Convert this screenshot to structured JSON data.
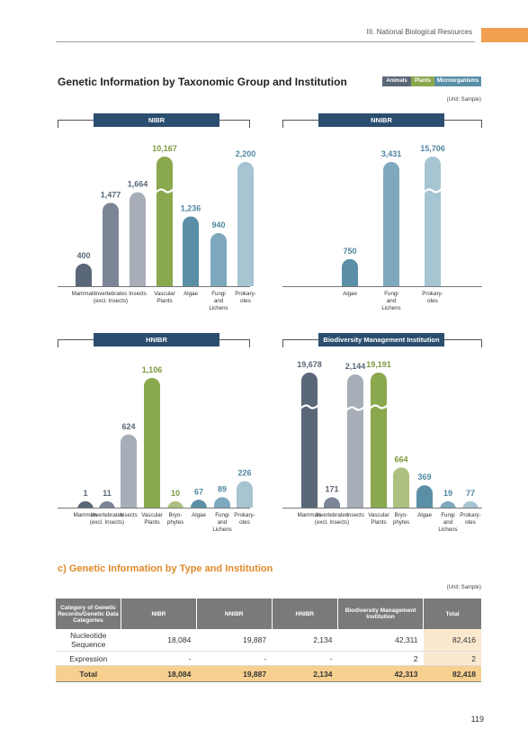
{
  "header": {
    "chapter": "III. National Biological Resources"
  },
  "title": "Genetic Information by Taxonomic Group and Institution",
  "legend": [
    {
      "label": "Animals",
      "color": "#5a6778"
    },
    {
      "label": "Plants",
      "color": "#8aa84e"
    },
    {
      "label": "Microorganisms",
      "color": "#5b8fa8"
    }
  ],
  "unit_label": "(Unit: Sample)",
  "colors": {
    "mammals": "#5a6778",
    "invertebrates": "#7b8596",
    "insects": "#a7aeb8",
    "vascular": "#8aa84e",
    "bryophytes": "#aec07f",
    "algae": "#5b8fa8",
    "fungi": "#7ea8bd",
    "prokaryotes": "#a6c4d1"
  },
  "chart_data": [
    {
      "type": "bar",
      "title": "NIBR",
      "categories": [
        "Mammals",
        "Invertebrates (excl. Insects)",
        "Insects",
        "Vascular Plants",
        "Algae",
        "Fungi and Lichens",
        "Prokaryotes"
      ],
      "values": [
        400,
        1477,
        1664,
        10167,
        1236,
        940,
        2200
      ],
      "value_labels": [
        "400",
        "1,477",
        "1,664",
        "10,167",
        "1,236",
        "940",
        "2,200"
      ],
      "axis_breaks": [
        3
      ],
      "tick_labels": [
        [
          "Mammals"
        ],
        [
          "Invertebrates",
          "(excl. Insects)"
        ],
        [
          "Insects"
        ],
        [
          "Vascular",
          "Plants"
        ],
        [
          "Algae"
        ],
        [
          "Fungi",
          "and",
          "Lichens"
        ],
        [
          "Prokary-",
          "otes"
        ]
      ]
    },
    {
      "type": "bar",
      "title": "NNIBR",
      "categories": [
        "Algae",
        "Fungi and Lichens",
        "Prokaryotes"
      ],
      "values": [
        750,
        3431,
        15706
      ],
      "value_labels": [
        "750",
        "3,431",
        "15,706"
      ],
      "axis_breaks": [
        2
      ],
      "tick_labels": [
        [
          "Algae"
        ],
        [
          "Fungi",
          "and",
          "Lichens"
        ],
        [
          "Prokary-",
          "otes"
        ]
      ]
    },
    {
      "type": "bar",
      "title": "HNIBR",
      "categories": [
        "Mammals",
        "Invertebrates (excl. Insects)",
        "Insects",
        "Vascular Plants",
        "Bryophytes",
        "Algae",
        "Fungi and Lichens",
        "Prokaryotes"
      ],
      "values": [
        1,
        11,
        624,
        1106,
        10,
        67,
        89,
        226
      ],
      "value_labels": [
        "1",
        "11",
        "624",
        "1,106",
        "10",
        "67",
        "89",
        "226"
      ],
      "axis_breaks": [],
      "tick_labels": [
        [
          "Mammals"
        ],
        [
          "Invertebrates",
          "(excl. Insects)"
        ],
        [
          "Insects"
        ],
        [
          "Vascular",
          "Plants"
        ],
        [
          "Bryo-",
          "phytes"
        ],
        [
          "Algae"
        ],
        [
          "Fungi",
          "and",
          "Lichens"
        ],
        [
          "Prokary-",
          "otes"
        ]
      ]
    },
    {
      "type": "bar",
      "title": "Biodiversity Management Institution",
      "categories": [
        "Mammals",
        "Invertebrates (excl. Insects)",
        "Insects",
        "Vascular Plants",
        "Bryophytes",
        "Algae",
        "Fungi and Lichens",
        "Prokaryotes"
      ],
      "values": [
        19678,
        171,
        2144,
        19191,
        664,
        369,
        19,
        77
      ],
      "value_labels": [
        "19,678",
        "171",
        "2,144",
        "19,191",
        "664",
        "369",
        "19",
        "77"
      ],
      "axis_breaks": [
        0,
        2,
        3
      ],
      "tick_labels": [
        [
          "Mammals"
        ],
        [
          "Invertebrates",
          "(excl. Insects)"
        ],
        [
          "Insects"
        ],
        [
          "Vascular",
          "Plants"
        ],
        [
          "Bryo-",
          "phytes"
        ],
        [
          "Algae"
        ],
        [
          "Fungi",
          "and",
          "Lichens"
        ],
        [
          "Prokary-",
          "otes"
        ]
      ]
    }
  ],
  "section_c": {
    "title": "c) Genetic Information by Type and Institution",
    "unit_label": "(Unit: Sample)",
    "headers": [
      "Category of Genetic Records/Genetic Data Categories",
      "NIBR",
      "NNIBR",
      "HNIBR",
      "Biodiversity Management Institution",
      "Total"
    ],
    "rows": [
      [
        "Nucleotide Sequence",
        "18,084",
        "19,887",
        "2,134",
        "42,311",
        "82,416"
      ],
      [
        "Expression",
        "-",
        "-",
        "-",
        "2",
        "2"
      ]
    ],
    "total_row": [
      "Total",
      "18,084",
      "19,887",
      "2,134",
      "42,313",
      "82,418"
    ]
  },
  "page_number": "119"
}
